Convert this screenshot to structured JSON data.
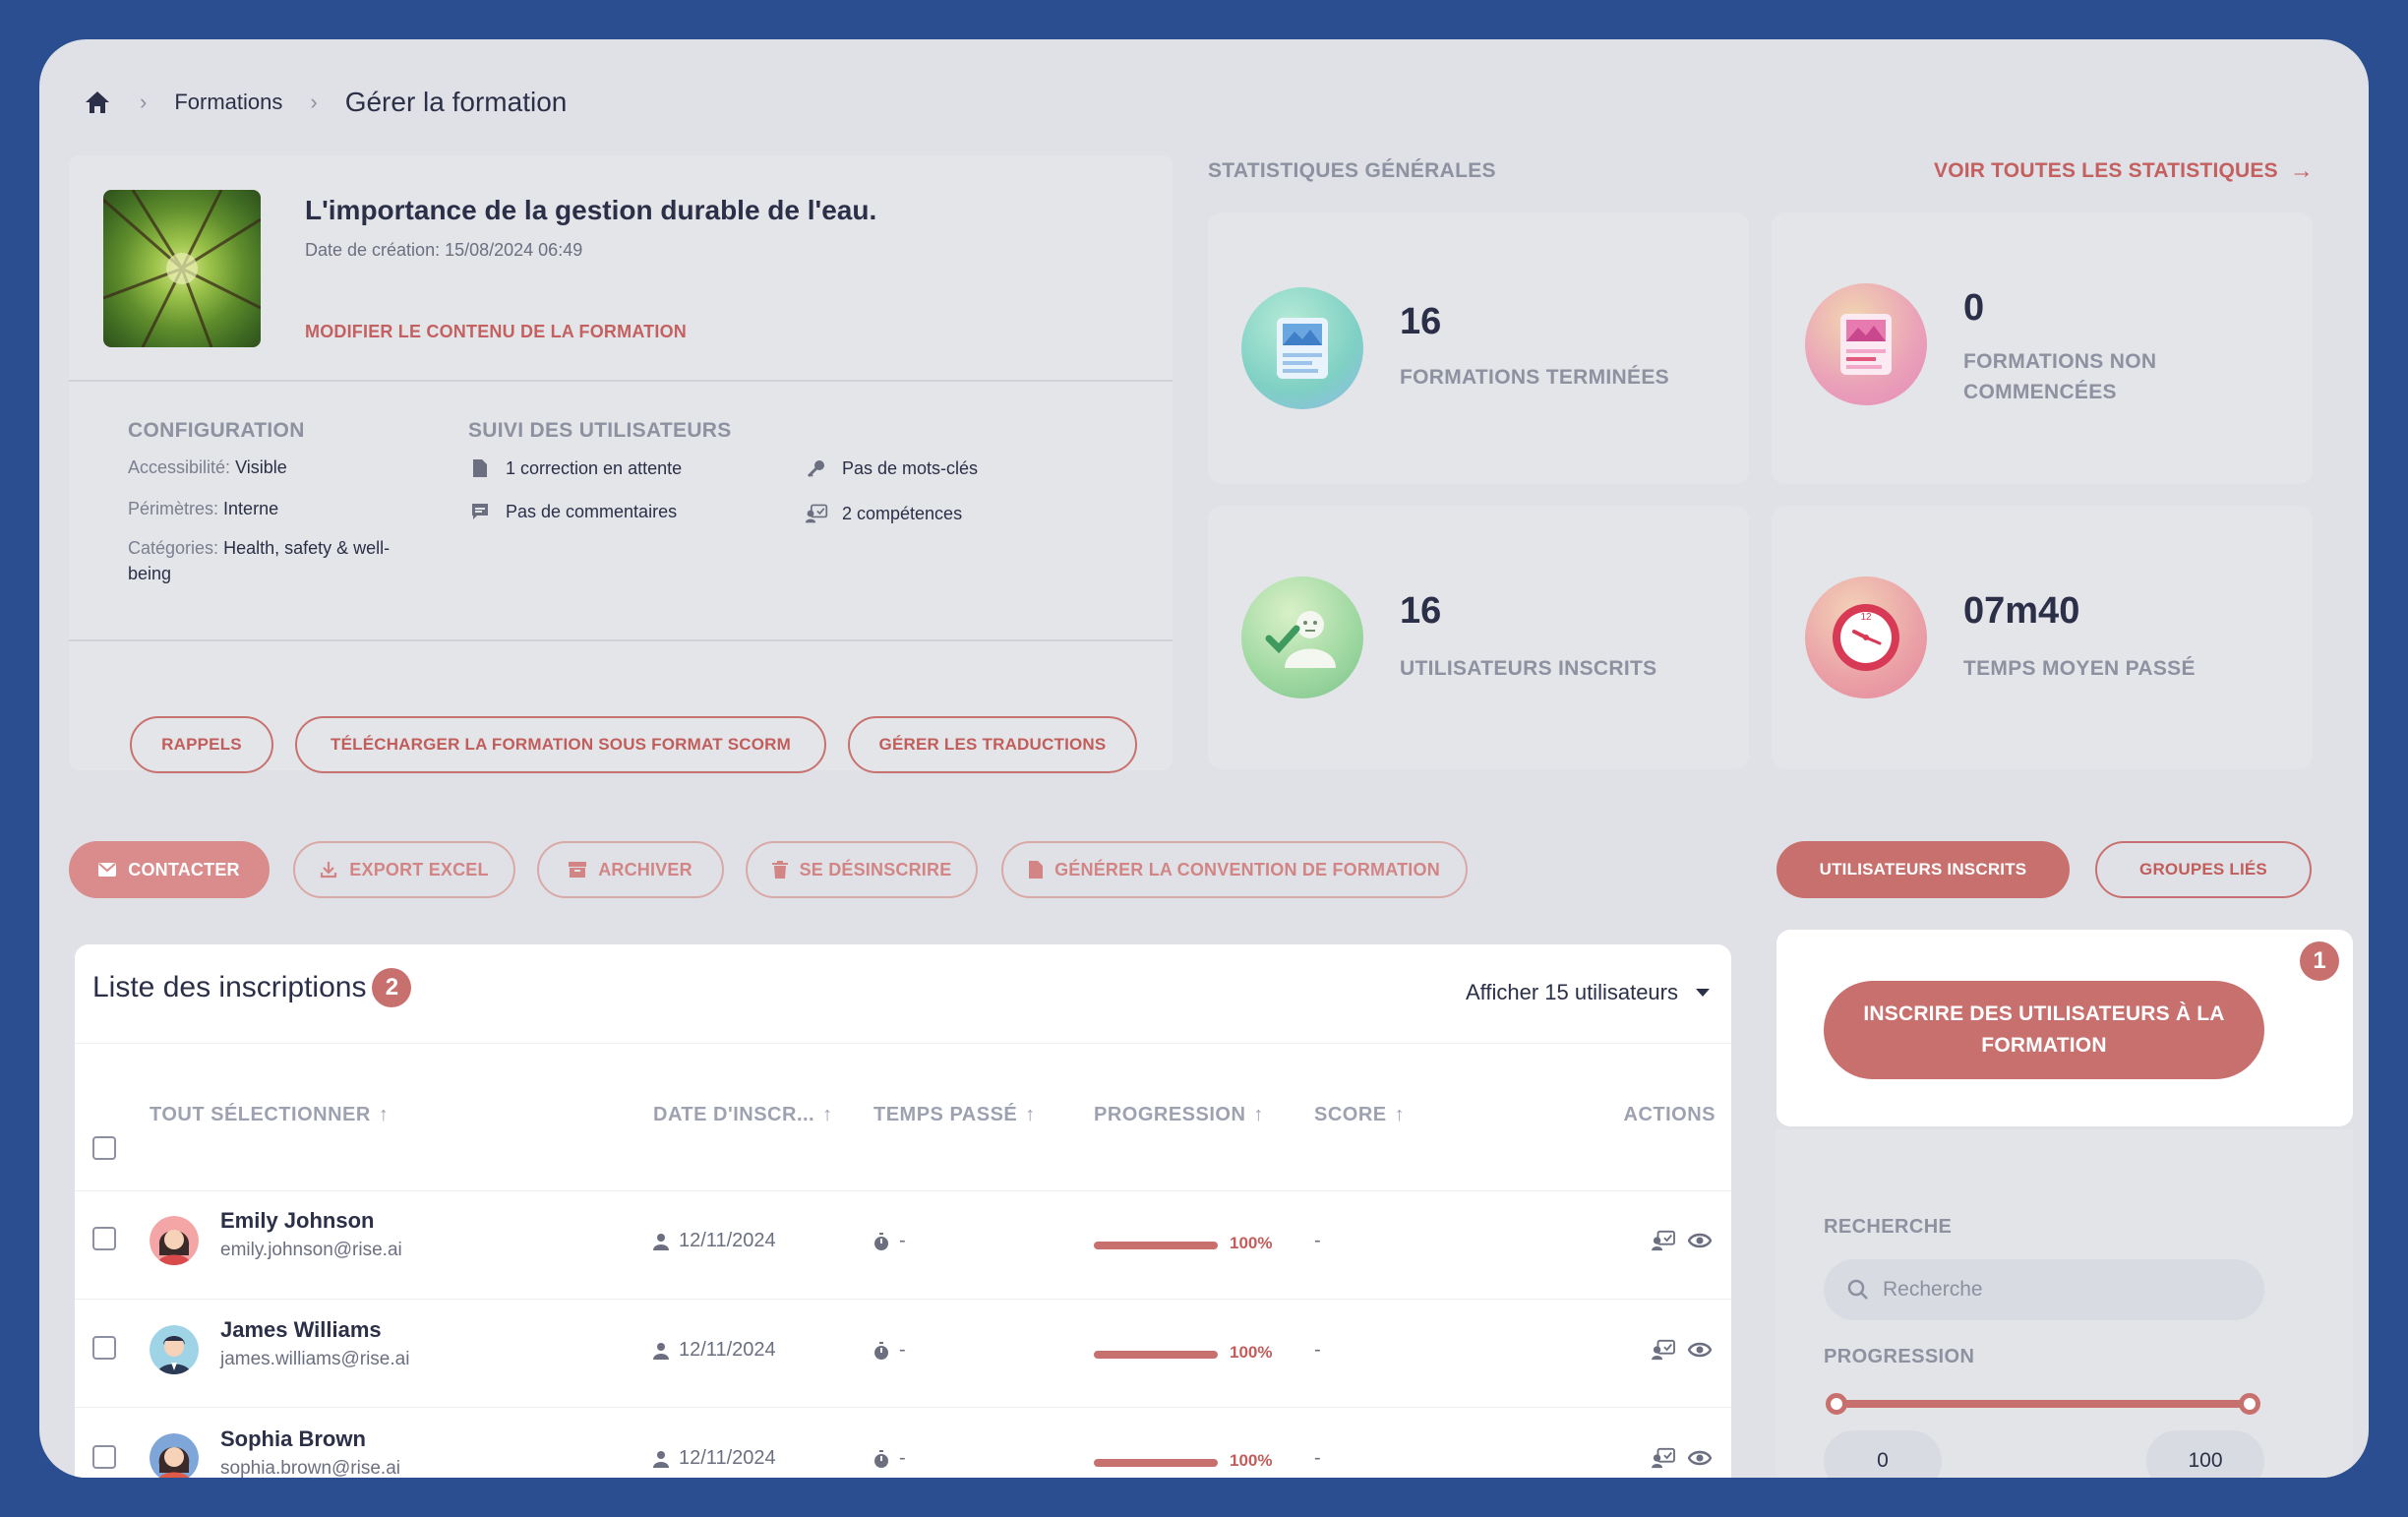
{
  "breadcrumb": {
    "parent": "Formations",
    "current": "Gérer la formation"
  },
  "course": {
    "title": "L'importance de la gestion durable de l'eau.",
    "created": "Date de création: 15/08/2024 06:49",
    "edit_link": "MODIFIER LE CONTENU DE LA FORMATION"
  },
  "config": {
    "heading": "CONFIGURATION",
    "access_key": "Accessibilité:",
    "access_val": "Visible",
    "scope_key": "Périmètres:",
    "scope_val": "Interne",
    "cat_key": "Catégories:",
    "cat_val": "Health, safety & well-being"
  },
  "follow": {
    "heading": "SUIVI DES UTILISATEURS",
    "corrections": "1 correction en attente",
    "comments": "Pas de commentaires",
    "keywords": "Pas de mots-clés",
    "skills": "2 compétences"
  },
  "course_buttons": {
    "reminders": "RAPPELS",
    "scorm": "TÉLÉCHARGER LA FORMATION SOUS FORMAT SCORM",
    "translations": "GÉRER LES TRADUCTIONS"
  },
  "stats": {
    "heading": "STATISTIQUES GÉNÉRALES",
    "see_all": "VOIR TOUTES LES STATISTIQUES",
    "completed_value": "16",
    "completed_label": "FORMATIONS TERMINÉES",
    "not_started_value": "0",
    "not_started_label": "FORMATIONS NON COMMENCÉES",
    "enrolled_value": "16",
    "enrolled_label": "UTILISATEURS INSCRITS",
    "avg_time_value": "07m40",
    "avg_time_label": "TEMPS MOYEN PASSÉ"
  },
  "toolbar": {
    "contact": "CONTACTER",
    "export": "EXPORT EXCEL",
    "archive": "ARCHIVER",
    "unsubscribe": "SE DÉSINSCRIRE",
    "convention": "GÉNÉRER LA CONVENTION DE FORMATION"
  },
  "tabs": {
    "enrolled": "UTILISATEURS INSCRITS",
    "groups": "GROUPES LIÉS"
  },
  "list": {
    "title": "Liste des inscriptions",
    "badge": "2",
    "show": "Afficher 15 utilisateurs",
    "columns": {
      "select_all": "TOUT SÉLECTIONNER",
      "date": "DATE D'INSCR...",
      "time": "TEMPS PASSÉ",
      "progress": "PROGRESSION",
      "score": "SCORE",
      "actions": "ACTIONS"
    },
    "rows": [
      {
        "name": "Emily Johnson",
        "email": "emily.johnson@rise.ai",
        "date": "12/11/2024",
        "time": "-",
        "progress": 1.0,
        "progress_label": "100%",
        "score": "-"
      },
      {
        "name": "James Williams",
        "email": "james.williams@rise.ai",
        "date": "12/11/2024",
        "time": "-",
        "progress": 1.0,
        "progress_label": "100%",
        "score": "-"
      },
      {
        "name": "Sophia Brown",
        "email": "sophia.brown@rise.ai",
        "date": "12/11/2024",
        "time": "-",
        "progress": 1.0,
        "progress_label": "100%",
        "score": "-"
      }
    ]
  },
  "enroll": {
    "button": "INSCRIRE DES UTILISATEURS À LA FORMATION",
    "badge": "1"
  },
  "filters": {
    "search_label": "RECHERCHE",
    "search_placeholder": "Recherche",
    "progress_label": "PROGRESSION",
    "progress_min": "0",
    "progress_max": "100"
  },
  "colors": {
    "accent": "#c8706e",
    "frame": "#2a4e8f",
    "surface": "#dfe1e6"
  }
}
